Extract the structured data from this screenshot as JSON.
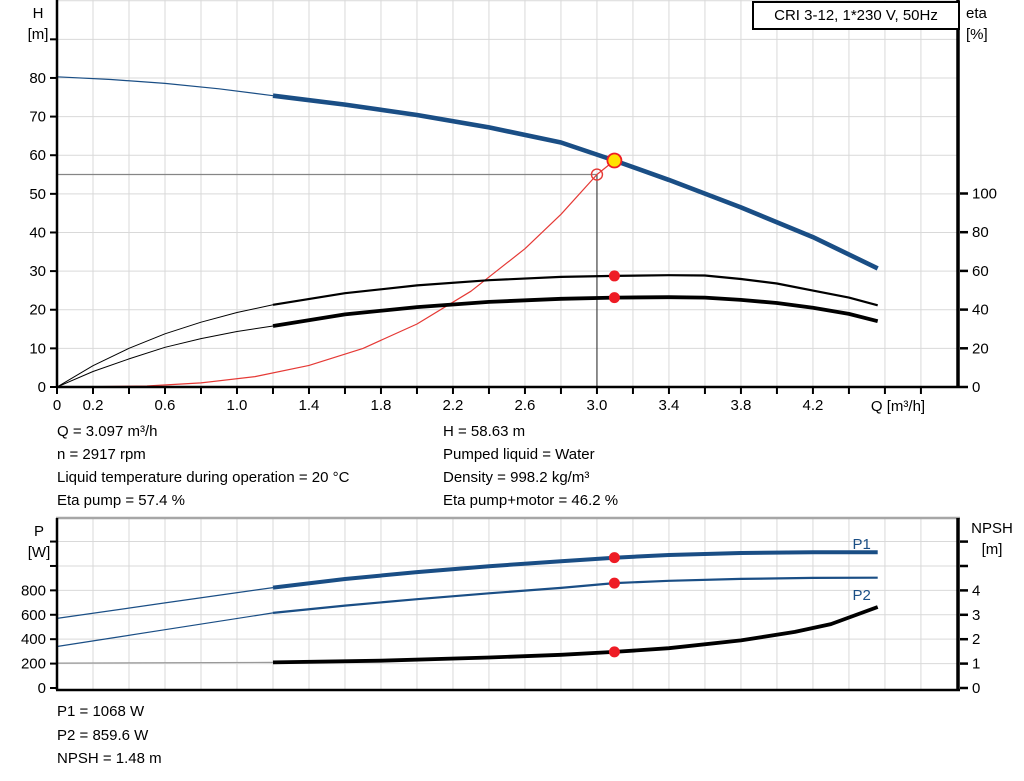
{
  "title": "CRI 3-12, 1*230 V, 50Hz",
  "axis_labels": {
    "h": "H",
    "h_unit": "[m]",
    "eta": "eta",
    "eta_unit": "[%]",
    "p": "P",
    "p_unit": "[W]",
    "npsh": "NPSH",
    "npsh_unit": "[m]"
  },
  "pump_info": {
    "left": [
      "Q = 3.097 m³/h",
      "n = 2917 rpm",
      "Liquid temperature during operation = 20 °C",
      "Eta pump = 57.4 %"
    ],
    "right": [
      "H = 58.63 m",
      "Pumped liquid = Water",
      "Density = 998.2 kg/m³",
      "Eta pump+motor = 46.2 %"
    ]
  },
  "power_info": [
    "P1 = 1068 W",
    "P2 = 859.6 W",
    "NPSH = 1.48 m"
  ],
  "colors": {
    "curve_blue": "#1a4e85",
    "curve_black": "#000000",
    "curve_red": "#e53935",
    "dot_red": "#ee1c25",
    "duty_yellow": "#ffe100",
    "grid": "#d9d9d9",
    "axis": "#000000",
    "crosshair_h": "#858585",
    "crosshair_v": "#444444",
    "npsh_thin_gray": "#999999",
    "chart_top_border": "#a6a6a6",
    "label_blue": "#1a4e85"
  },
  "chart_data": [
    {
      "id": "qh",
      "type": "line",
      "title": "CRI 3-12, 1*230 V, 50Hz",
      "x_axis": {
        "label": "Q [m³/h]",
        "min": 0,
        "max": 5.006,
        "grid_step": 0.2,
        "labeled_ticks": [
          0,
          0.2,
          0.6,
          1.0,
          1.4,
          1.8,
          2.2,
          2.6,
          3.0,
          3.4,
          3.8,
          4.2
        ],
        "show_ticks": true
      },
      "left_axis": {
        "name": "H [m]",
        "min": 0,
        "max": 100.18,
        "ticks": [
          [
            0,
            "0"
          ],
          [
            10,
            "10"
          ],
          [
            20,
            "20"
          ],
          [
            30,
            "30"
          ],
          [
            40,
            "40"
          ],
          [
            50,
            "50"
          ],
          [
            60,
            "60"
          ],
          [
            70,
            "70"
          ],
          [
            80,
            "80"
          ],
          [
            90,
            ""
          ]
        ],
        "grid_values": [
          10,
          20,
          30,
          40,
          50,
          60,
          70,
          80,
          90,
          100
        ]
      },
      "right_axis": {
        "name": "eta [%]",
        "min": 0,
        "max": 200,
        "ticks": [
          [
            0,
            "0"
          ],
          [
            20,
            "20"
          ],
          [
            40,
            "40"
          ],
          [
            60,
            "60"
          ],
          [
            80,
            "80"
          ],
          [
            100,
            "100"
          ]
        ]
      },
      "crosshair": {
        "q": 3.0,
        "h": 55
      },
      "duty_point": {
        "q": 3.097,
        "h": 58.63
      },
      "series": [
        {
          "name": "hq-curve-thin",
          "axis": "left",
          "color": "curve_blue",
          "width": 1.2,
          "points": [
            [
              0,
              80.3
            ],
            [
              0.3,
              79.6
            ],
            [
              0.6,
              78.6
            ],
            [
              0.9,
              77.2
            ],
            [
              1.2,
              75.4
            ]
          ]
        },
        {
          "name": "hq-curve",
          "axis": "left",
          "color": "curve_blue",
          "width": 4.6,
          "points": [
            [
              1.2,
              75.4
            ],
            [
              1.6,
              73.1
            ],
            [
              2.0,
              70.4
            ],
            [
              2.4,
              67.2
            ],
            [
              2.8,
              63.3
            ],
            [
              3.097,
              58.63
            ],
            [
              3.4,
              53.6
            ],
            [
              3.8,
              46.5
            ],
            [
              4.2,
              38.8
            ],
            [
              4.56,
              30.7
            ]
          ]
        },
        {
          "name": "system-curve",
          "axis": "left",
          "color": "curve_red",
          "width": 1.2,
          "points": [
            [
              0.15,
              0.05
            ],
            [
              0.5,
              0.26
            ],
            [
              0.8,
              1.05
            ],
            [
              1.1,
              2.7
            ],
            [
              1.4,
              5.6
            ],
            [
              1.7,
              10.0
            ],
            [
              2.0,
              16.3
            ],
            [
              2.3,
              24.8
            ],
            [
              2.6,
              35.8
            ],
            [
              2.8,
              44.7
            ],
            [
              3.0,
              55
            ],
            [
              3.097,
              58.63
            ]
          ]
        },
        {
          "name": "eta-pump-thin",
          "axis": "right",
          "color": "curve_black",
          "width": 1,
          "points": [
            [
              0,
              0
            ],
            [
              0.2,
              11
            ],
            [
              0.4,
              20
            ],
            [
              0.6,
              27.5
            ],
            [
              0.8,
              33.5
            ],
            [
              1.0,
              38.5
            ],
            [
              1.2,
              42.5
            ]
          ]
        },
        {
          "name": "eta-pump",
          "axis": "right",
          "color": "curve_black",
          "width": 2.2,
          "points": [
            [
              1.2,
              42.5
            ],
            [
              1.6,
              48.5
            ],
            [
              2.0,
              52.5
            ],
            [
              2.4,
              55.2
            ],
            [
              2.8,
              56.9
            ],
            [
              3.097,
              57.4
            ],
            [
              3.4,
              57.8
            ],
            [
              3.6,
              57.6
            ],
            [
              3.8,
              55.8
            ],
            [
              4.0,
              53.5
            ],
            [
              4.2,
              49.8
            ],
            [
              4.4,
              46.2
            ],
            [
              4.56,
              42.2
            ]
          ]
        },
        {
          "name": "eta-pump-motor-thin",
          "axis": "right",
          "color": "curve_black",
          "width": 1,
          "points": [
            [
              0,
              0
            ],
            [
              0.2,
              8
            ],
            [
              0.4,
              14.5
            ],
            [
              0.6,
              20.5
            ],
            [
              0.8,
              25
            ],
            [
              1.0,
              28.7
            ],
            [
              1.2,
              31.5
            ]
          ]
        },
        {
          "name": "eta-pump-motor",
          "axis": "right",
          "color": "curve_black",
          "width": 3.8,
          "points": [
            [
              1.2,
              31.5
            ],
            [
              1.6,
              37.5
            ],
            [
              2.0,
              41.3
            ],
            [
              2.4,
              44.0
            ],
            [
              2.8,
              45.6
            ],
            [
              3.097,
              46.2
            ],
            [
              3.4,
              46.4
            ],
            [
              3.6,
              46.2
            ],
            [
              3.8,
              45.0
            ],
            [
              4.0,
              43.4
            ],
            [
              4.2,
              41.0
            ],
            [
              4.4,
              37.8
            ],
            [
              4.56,
              34.0
            ]
          ]
        }
      ],
      "markers": [
        {
          "name": "eta-pump-point",
          "style": "dot",
          "axis": "right",
          "q": 3.097,
          "v": 57.4
        },
        {
          "name": "eta-pump-motor-point",
          "style": "dot",
          "axis": "right",
          "q": 3.097,
          "v": 46.2
        },
        {
          "name": "requested-duty-point",
          "style": "open",
          "axis": "left",
          "q": 3.0,
          "v": 55
        },
        {
          "name": "duty-point",
          "style": "duty",
          "axis": "left",
          "q": 3.097,
          "v": 58.63
        }
      ],
      "labels": []
    },
    {
      "id": "power",
      "type": "line",
      "x_axis": {
        "label": "",
        "min": 0,
        "max": 5.006,
        "grid_step": 0.2,
        "labeled_ticks": [],
        "show_ticks": false
      },
      "left_axis": {
        "name": "P [W]",
        "min": -16.39,
        "max": 1393,
        "ticks": [
          [
            0,
            "0"
          ],
          [
            200,
            "200"
          ],
          [
            400,
            "400"
          ],
          [
            600,
            "600"
          ],
          [
            800,
            "800"
          ],
          [
            1000,
            ""
          ],
          [
            1200,
            ""
          ]
        ],
        "grid_values": [
          200,
          400,
          600,
          800,
          1000,
          1200
        ]
      },
      "right_axis": {
        "name": "NPSH [m]",
        "min": -0.082,
        "max": 6.967,
        "ticks": [
          [
            0,
            "0"
          ],
          [
            1,
            "1"
          ],
          [
            2,
            "2"
          ],
          [
            3,
            "3"
          ],
          [
            4,
            "4"
          ],
          [
            5,
            ""
          ],
          [
            6,
            ""
          ]
        ]
      },
      "series": [
        {
          "name": "p1-curve-thin",
          "axis": "left",
          "color": "curve_blue",
          "width": 1.2,
          "points": [
            [
              0,
              570
            ],
            [
              0.6,
              697
            ],
            [
              1.2,
              823
            ]
          ]
        },
        {
          "name": "p1-curve",
          "axis": "left",
          "color": "curve_blue",
          "width": 4,
          "points": [
            [
              1.2,
              823
            ],
            [
              1.6,
              893
            ],
            [
              2.0,
              950
            ],
            [
              2.4,
              998
            ],
            [
              2.8,
              1038
            ],
            [
              3.097,
              1068
            ],
            [
              3.4,
              1090
            ],
            [
              3.8,
              1106
            ],
            [
              4.2,
              1113
            ],
            [
              4.56,
              1112
            ]
          ]
        },
        {
          "name": "p2-curve-thin",
          "axis": "left",
          "color": "curve_blue",
          "width": 1.2,
          "points": [
            [
              0,
              340
            ],
            [
              0.6,
              478
            ],
            [
              1.2,
              615
            ]
          ]
        },
        {
          "name": "p2-curve",
          "axis": "left",
          "color": "curve_blue",
          "width": 2.2,
          "points": [
            [
              1.2,
              615
            ],
            [
              1.6,
              675
            ],
            [
              2.0,
              728
            ],
            [
              2.4,
              776
            ],
            [
              2.8,
              820
            ],
            [
              3.097,
              859.6
            ],
            [
              3.4,
              878
            ],
            [
              3.8,
              894
            ],
            [
              4.2,
              902
            ],
            [
              4.56,
              904
            ]
          ]
        },
        {
          "name": "npsh-curve-thin",
          "axis": "right",
          "color": "npsh_thin_gray",
          "width": 1.2,
          "points": [
            [
              0,
              1.02
            ],
            [
              1.2,
              1.05
            ]
          ]
        },
        {
          "name": "npsh-curve",
          "axis": "right",
          "color": "curve_black",
          "width": 3.8,
          "points": [
            [
              1.2,
              1.05
            ],
            [
              1.8,
              1.12
            ],
            [
              2.4,
              1.25
            ],
            [
              2.8,
              1.36
            ],
            [
              3.097,
              1.48
            ],
            [
              3.4,
              1.63
            ],
            [
              3.8,
              1.95
            ],
            [
              4.1,
              2.3
            ],
            [
              4.3,
              2.62
            ],
            [
              4.56,
              3.32
            ]
          ]
        }
      ],
      "markers": [
        {
          "name": "p1-point",
          "style": "dot",
          "axis": "left",
          "q": 3.097,
          "v": 1068
        },
        {
          "name": "p2-point",
          "style": "dot",
          "axis": "left",
          "q": 3.097,
          "v": 859.6
        },
        {
          "name": "npsh-point",
          "style": "dot",
          "axis": "right",
          "q": 3.097,
          "v": 1.48
        }
      ],
      "labels": [
        {
          "text": "P1",
          "axis": "left",
          "q": 4.42,
          "v": 1180
        },
        {
          "text": "P2",
          "axis": "left",
          "q": 4.42,
          "v": 762
        }
      ]
    }
  ]
}
